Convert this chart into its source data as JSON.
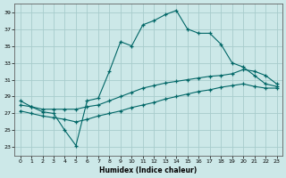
{
  "xlabel": "Humidex (Indice chaleur)",
  "bg_color": "#cce8e8",
  "grid_color": "#a8cccc",
  "line_color": "#006666",
  "xlim": [
    -0.5,
    23.5
  ],
  "ylim": [
    22.0,
    40.0
  ],
  "xticks": [
    0,
    1,
    2,
    3,
    4,
    5,
    6,
    7,
    8,
    9,
    10,
    11,
    12,
    13,
    14,
    15,
    16,
    17,
    18,
    19,
    20,
    21,
    22,
    23
  ],
  "yticks": [
    23,
    25,
    27,
    29,
    31,
    33,
    35,
    37,
    39
  ],
  "series1_x": [
    0,
    1,
    2,
    3,
    4,
    5,
    6,
    7,
    8,
    9,
    10,
    11,
    12,
    13,
    14,
    15,
    16,
    17,
    18,
    19,
    20,
    21,
    22,
    23
  ],
  "series1_y": [
    28.5,
    27.8,
    27.2,
    27.0,
    25.0,
    23.2,
    28.5,
    28.8,
    32.0,
    35.5,
    35.0,
    37.5,
    38.0,
    38.7,
    39.2,
    37.0,
    36.5,
    36.5,
    35.2,
    33.0,
    32.5,
    31.5,
    30.5,
    30.2
  ],
  "series2_x": [
    0,
    1,
    2,
    3,
    4,
    5,
    6,
    7,
    8,
    9,
    10,
    11,
    12,
    13,
    14,
    15,
    16,
    17,
    18,
    19,
    20,
    21,
    22,
    23
  ],
  "series2_y": [
    28.0,
    27.8,
    27.5,
    27.5,
    27.5,
    27.5,
    27.8,
    28.0,
    28.5,
    29.0,
    29.5,
    30.0,
    30.3,
    30.6,
    30.8,
    31.0,
    31.2,
    31.4,
    31.5,
    31.7,
    32.2,
    32.0,
    31.5,
    30.5
  ],
  "series3_x": [
    0,
    1,
    2,
    3,
    4,
    5,
    6,
    7,
    8,
    9,
    10,
    11,
    12,
    13,
    14,
    15,
    16,
    17,
    18,
    19,
    20,
    21,
    22,
    23
  ],
  "series3_y": [
    27.3,
    27.0,
    26.7,
    26.5,
    26.3,
    26.0,
    26.3,
    26.7,
    27.0,
    27.3,
    27.7,
    28.0,
    28.3,
    28.7,
    29.0,
    29.3,
    29.6,
    29.8,
    30.1,
    30.3,
    30.5,
    30.2,
    30.0,
    30.0
  ]
}
